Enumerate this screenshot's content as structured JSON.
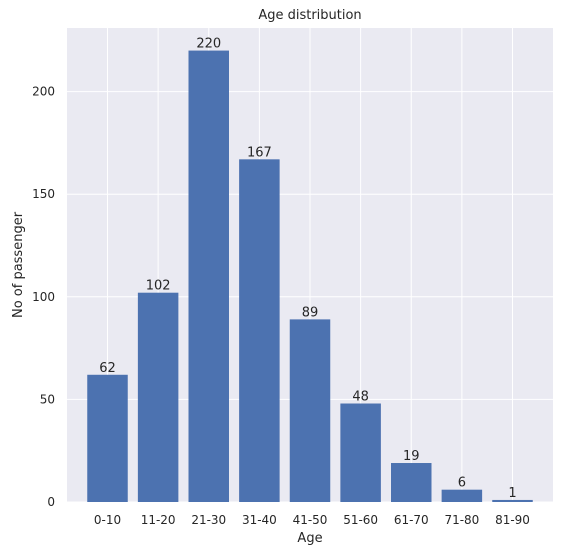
{
  "chart_data": {
    "type": "bar",
    "title": "Age distribution",
    "xlabel": "Age",
    "ylabel": "No of passenger",
    "categories": [
      "0-10",
      "11-20",
      "21-30",
      "31-40",
      "41-50",
      "51-60",
      "61-70",
      "71-80",
      "81-90"
    ],
    "values": [
      62,
      102,
      220,
      167,
      89,
      48,
      19,
      6,
      1
    ],
    "ylim": [
      0,
      231
    ],
    "yticks": [
      0,
      50,
      100,
      150,
      200
    ],
    "grid": true,
    "colors": {
      "bar": "#4c72b0",
      "plot_background": "#eaeaf2",
      "grid": "#ffffff"
    }
  }
}
